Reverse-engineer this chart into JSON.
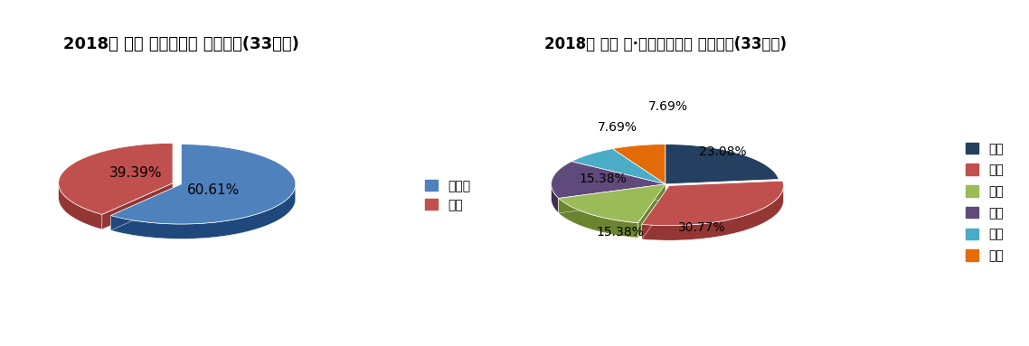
{
  "chart1": {
    "title": "2018년 전남 미국나팔꽃 발생분포(33지역)",
    "labels": [
      "비발생",
      "발생"
    ],
    "values": [
      60.61,
      39.39
    ],
    "colors_top": [
      "#4F81BD",
      "#C0504D"
    ],
    "colors_side": [
      "#1F497D",
      "#943634"
    ],
    "explode": [
      0.0,
      0.08
    ],
    "pct_labels": [
      "60.61%",
      "39.39%"
    ],
    "legend_labels": [
      "비발생",
      "발생"
    ],
    "startangle": 90
  },
  "chart2": {
    "title": "2018년 전남 시·군미국나팔꽃 발생분포(33지역)",
    "labels": [
      "고흥",
      "장흥",
      "곡성",
      "구례",
      "순천",
      "보성"
    ],
    "values": [
      23.08,
      30.77,
      15.38,
      15.38,
      7.69,
      7.69
    ],
    "colors_top": [
      "#243F60",
      "#C0504D",
      "#9BBB59",
      "#604A7B",
      "#4BACC6",
      "#E36C09"
    ],
    "colors_side": [
      "#0D1F30",
      "#943634",
      "#6B8430",
      "#3D2F50",
      "#215868",
      "#8B3D00"
    ],
    "explode": [
      0.0,
      0.05,
      0.0,
      0.0,
      0.0,
      0.0
    ],
    "pct_labels": [
      "23.08%",
      "30.77%",
      "15.38%",
      "15.38%",
      "7.69%",
      "7.69%"
    ],
    "startangle": 90
  },
  "background_color": "#FFFFFF",
  "title_fontsize": 13,
  "label_fontsize": 11,
  "legend_fontsize": 10
}
